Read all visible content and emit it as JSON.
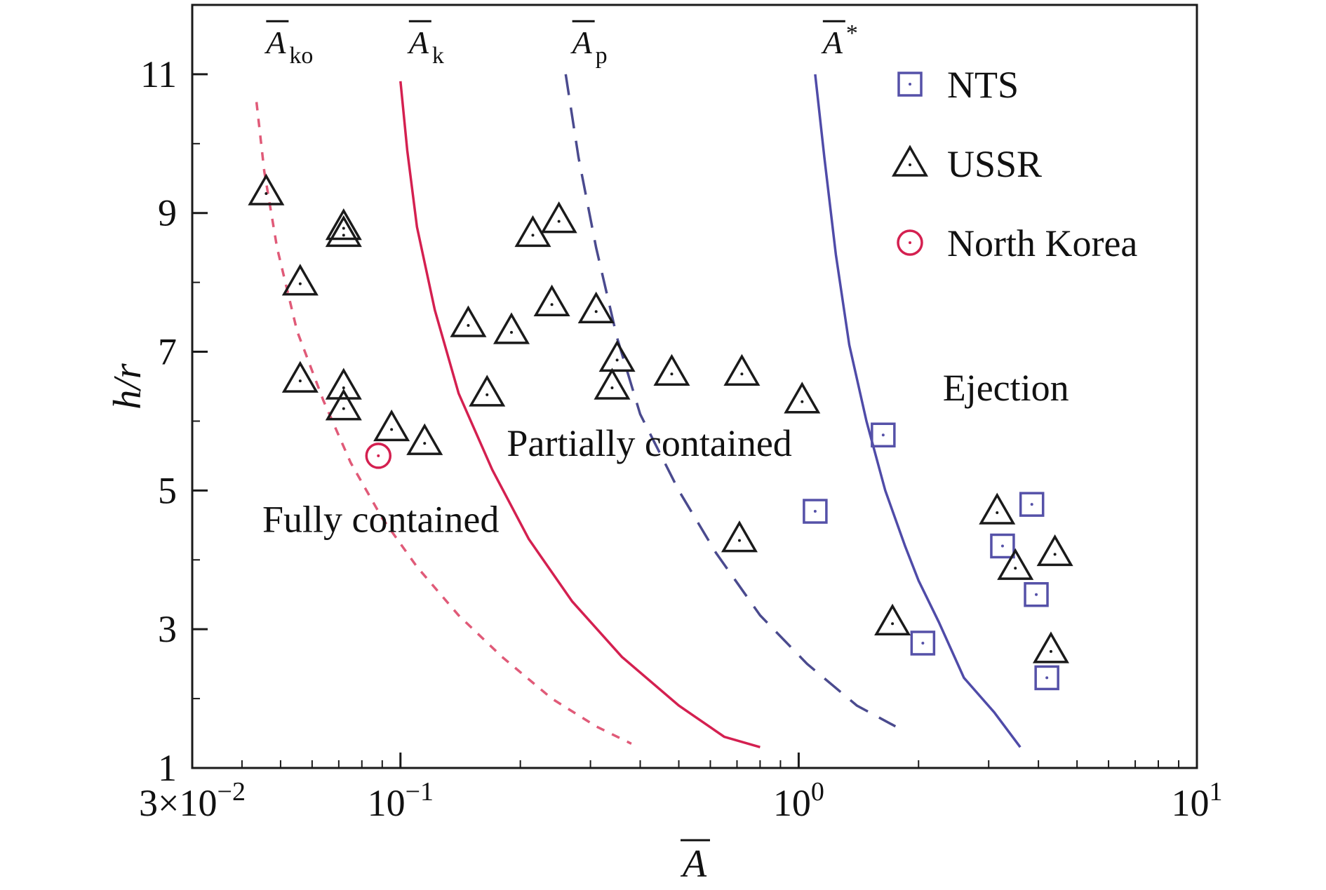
{
  "chart_data": {
    "type": "scatter",
    "xscale": "log",
    "xlim": [
      0.03,
      10
    ],
    "ylim": [
      1,
      12
    ],
    "xlabel": "A",
    "ylabel": "h/r",
    "x_ticks": [
      {
        "value": 0.03,
        "mantissa": "3×10",
        "exp": "−2"
      },
      {
        "value": 0.1,
        "mantissa": "10",
        "exp": "−1"
      },
      {
        "value": 1,
        "mantissa": "10",
        "exp": "0"
      },
      {
        "value": 10,
        "mantissa": "10",
        "exp": "1"
      }
    ],
    "y_ticks": [
      1,
      3,
      5,
      7,
      9,
      11
    ],
    "regions": [
      {
        "label": "Fully contained",
        "x": 0.045,
        "y": 4.4
      },
      {
        "label": "Partially contained",
        "x": 0.185,
        "y": 5.5
      },
      {
        "label": "Ejection",
        "x": 2.3,
        "y": 6.3
      }
    ],
    "curves": [
      {
        "name": "A",
        "sub": "ko",
        "style": "dotted",
        "color": "#e05a78",
        "label_at": [
          0.046,
          11.3
        ],
        "points": [
          [
            0.0435,
            10.6
          ],
          [
            0.0455,
            9.6
          ],
          [
            0.049,
            8.5
          ],
          [
            0.055,
            7.3
          ],
          [
            0.064,
            6.3
          ],
          [
            0.075,
            5.4
          ],
          [
            0.09,
            4.6
          ],
          [
            0.11,
            3.9
          ],
          [
            0.14,
            3.2
          ],
          [
            0.18,
            2.6
          ],
          [
            0.24,
            2.0
          ],
          [
            0.31,
            1.6
          ],
          [
            0.38,
            1.35
          ]
        ]
      },
      {
        "name": "A",
        "sub": "k",
        "style": "solid",
        "color": "#d42050",
        "label_at": [
          0.105,
          11.3
        ],
        "points": [
          [
            0.1,
            10.9
          ],
          [
            0.104,
            9.9
          ],
          [
            0.11,
            8.8
          ],
          [
            0.122,
            7.6
          ],
          [
            0.14,
            6.4
          ],
          [
            0.17,
            5.3
          ],
          [
            0.21,
            4.3
          ],
          [
            0.27,
            3.4
          ],
          [
            0.36,
            2.6
          ],
          [
            0.5,
            1.9
          ],
          [
            0.65,
            1.45
          ],
          [
            0.8,
            1.3
          ]
        ]
      },
      {
        "name": "A",
        "sub": "p",
        "style": "dashed",
        "color": "#4a4a8e",
        "label_at": [
          0.27,
          11.3
        ],
        "points": [
          [
            0.26,
            11.0
          ],
          [
            0.28,
            9.8
          ],
          [
            0.31,
            8.5
          ],
          [
            0.35,
            7.2
          ],
          [
            0.4,
            6.1
          ],
          [
            0.5,
            5.0
          ],
          [
            0.62,
            4.1
          ],
          [
            0.8,
            3.2
          ],
          [
            1.05,
            2.5
          ],
          [
            1.4,
            1.9
          ],
          [
            1.75,
            1.6
          ]
        ]
      },
      {
        "name": "A",
        "sub": "*",
        "style": "solid",
        "color": "#4f4ba8",
        "label_at": [
          1.15,
          11.3
        ],
        "points": [
          [
            1.1,
            11.0
          ],
          [
            1.16,
            9.8
          ],
          [
            1.24,
            8.4
          ],
          [
            1.34,
            7.1
          ],
          [
            1.48,
            6.0
          ],
          [
            1.65,
            5.0
          ],
          [
            1.85,
            4.2
          ],
          [
            2.0,
            3.7
          ],
          [
            2.25,
            3.1
          ],
          [
            2.6,
            2.3
          ],
          [
            3.1,
            1.8
          ],
          [
            3.6,
            1.3
          ]
        ]
      }
    ],
    "series": [
      {
        "name": "NTS",
        "marker": "square",
        "color": "#5551a8",
        "points": [
          [
            1.63,
            5.8
          ],
          [
            1.1,
            4.7
          ],
          [
            2.05,
            2.8
          ],
          [
            3.85,
            4.8
          ],
          [
            3.25,
            4.2
          ],
          [
            3.95,
            3.5
          ],
          [
            4.2,
            2.3
          ]
        ]
      },
      {
        "name": "USSR",
        "marker": "triangle",
        "color": "#1a1a1a",
        "points": [
          [
            0.046,
            9.3
          ],
          [
            0.072,
            8.8
          ],
          [
            0.072,
            8.7
          ],
          [
            0.056,
            8.0
          ],
          [
            0.056,
            6.6
          ],
          [
            0.072,
            6.5
          ],
          [
            0.072,
            6.2
          ],
          [
            0.095,
            5.9
          ],
          [
            0.115,
            5.7
          ],
          [
            0.148,
            7.4
          ],
          [
            0.19,
            7.3
          ],
          [
            0.165,
            6.4
          ],
          [
            0.215,
            8.7
          ],
          [
            0.25,
            8.9
          ],
          [
            0.24,
            7.7
          ],
          [
            0.31,
            7.6
          ],
          [
            0.35,
            6.9
          ],
          [
            0.34,
            6.5
          ],
          [
            0.48,
            6.7
          ],
          [
            0.72,
            6.7
          ],
          [
            1.02,
            6.3
          ],
          [
            0.71,
            4.3
          ],
          [
            1.72,
            3.1
          ],
          [
            3.15,
            4.7
          ],
          [
            3.5,
            3.9
          ],
          [
            4.4,
            4.1
          ],
          [
            4.3,
            2.7
          ]
        ]
      },
      {
        "name": "North Korea",
        "marker": "circle",
        "color": "#d42050",
        "points": [
          [
            0.088,
            5.5
          ]
        ]
      }
    ],
    "legend": {
      "position": "top-right"
    }
  }
}
